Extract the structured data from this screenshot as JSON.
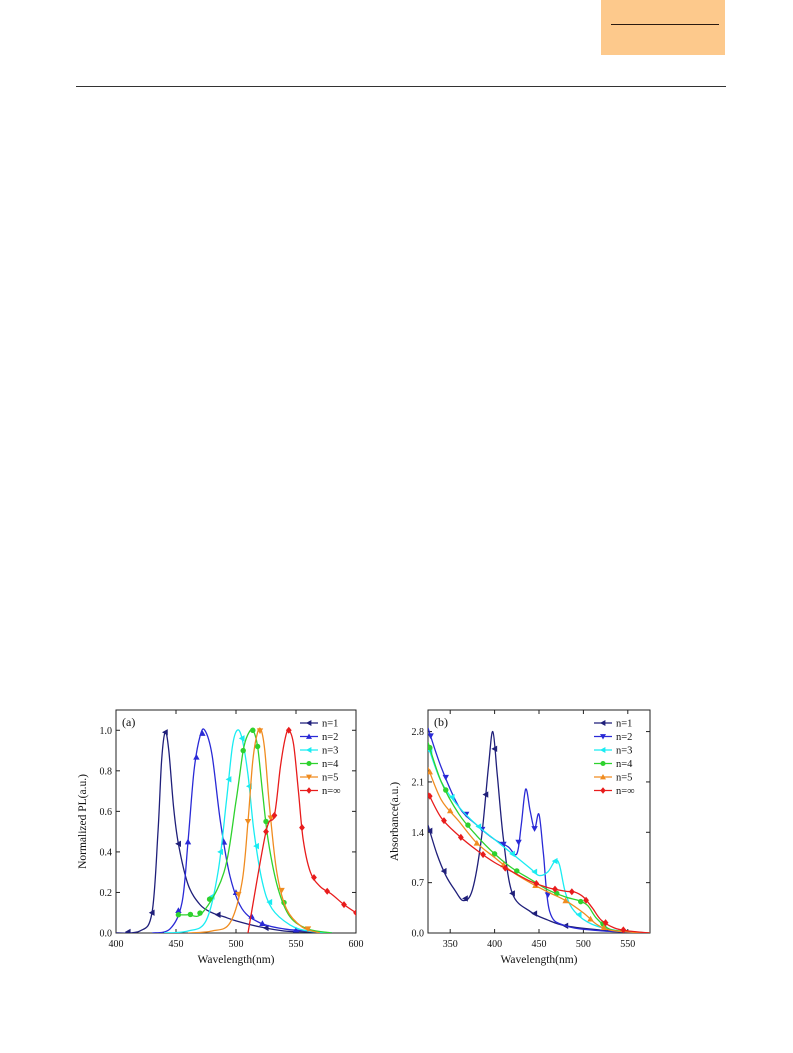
{
  "page": {
    "background": "#ffffff",
    "header_box_color": "#fdc98c"
  },
  "chart_data": [
    {
      "type": "line",
      "panel_label": "(a)",
      "title": "",
      "xlabel": "Wavelength(nm)",
      "ylabel": "Normalized PL(a.u.)",
      "xlim": [
        400,
        600
      ],
      "ylim": [
        0,
        1.1
      ],
      "xticks": [
        "400",
        "450",
        "500",
        "550",
        "600"
      ],
      "yticks": [
        "0.0",
        "0.2",
        "0.4",
        "0.6",
        "0.8",
        "1.0"
      ],
      "grid": false,
      "legend_position": "top-right",
      "series": [
        {
          "name": "n=1",
          "color": "#1f1f7a",
          "marker": "left-triangle",
          "x": [
            400,
            420,
            430,
            435,
            438,
            441,
            444,
            448,
            452,
            460,
            470,
            480,
            490,
            500,
            520,
            540,
            560,
            580
          ],
          "y": [
            0,
            0.01,
            0.1,
            0.5,
            0.85,
            0.99,
            0.9,
            0.62,
            0.44,
            0.24,
            0.14,
            0.1,
            0.08,
            0.06,
            0.03,
            0.01,
            0.005,
            0
          ],
          "markers_x": [
            410,
            430,
            441,
            452,
            485,
            525
          ]
        },
        {
          "name": "n=2",
          "color": "#2a2ad6",
          "marker": "up-triangle",
          "x": [
            430,
            445,
            455,
            460,
            465,
            470,
            474,
            480,
            487,
            495,
            505,
            520,
            540,
            560,
            580
          ],
          "y": [
            0,
            0.02,
            0.15,
            0.45,
            0.8,
            0.97,
            1.0,
            0.88,
            0.55,
            0.28,
            0.12,
            0.05,
            0.02,
            0.01,
            0
          ],
          "markers_x": [
            452,
            460,
            467,
            472,
            490,
            500,
            513,
            522,
            550
          ]
        },
        {
          "name": "n=3",
          "color": "#19ecf2",
          "marker": "left-triangle",
          "x": [
            440,
            460,
            475,
            485,
            492,
            497,
            501,
            505,
            510,
            515,
            522,
            530,
            545,
            560,
            580
          ],
          "y": [
            0,
            0.01,
            0.06,
            0.3,
            0.65,
            0.92,
            1.0,
            0.96,
            0.78,
            0.5,
            0.25,
            0.12,
            0.04,
            0.01,
            0
          ],
          "markers_x": [
            480,
            487,
            494,
            505,
            511,
            517,
            528
          ]
        },
        {
          "name": "n=4",
          "color": "#2ed22e",
          "marker": "circle",
          "x": [
            450,
            460,
            472,
            490,
            500,
            506,
            510,
            514,
            518,
            522,
            527,
            535,
            545,
            560,
            580
          ],
          "y": [
            0.09,
            0.09,
            0.1,
            0.3,
            0.65,
            0.9,
            0.98,
            1.0,
            0.92,
            0.7,
            0.45,
            0.22,
            0.08,
            0.02,
            0
          ],
          "markers_x": [
            452,
            462,
            470,
            478,
            506,
            514,
            518,
            525,
            540
          ]
        },
        {
          "name": "n=5",
          "color": "#f08c20",
          "marker": "down-triangle",
          "x": [
            460,
            480,
            495,
            505,
            510,
            514,
            518,
            521,
            524,
            528,
            534,
            542,
            555,
            570
          ],
          "y": [
            0,
            0.01,
            0.05,
            0.25,
            0.55,
            0.85,
            0.99,
            1.0,
            0.9,
            0.62,
            0.3,
            0.12,
            0.03,
            0
          ],
          "markers_x": [
            502,
            510,
            520,
            529,
            538,
            560
          ]
        },
        {
          "name": "n=∞",
          "color": "#e81c1c",
          "marker": "diamond",
          "x": [
            510,
            525,
            532,
            537,
            541,
            544,
            548,
            552,
            556,
            562,
            570,
            580,
            590,
            600
          ],
          "y": [
            0,
            0.5,
            0.58,
            0.82,
            0.96,
            1.0,
            0.93,
            0.7,
            0.46,
            0.3,
            0.23,
            0.19,
            0.14,
            0.1
          ],
          "markers_x": [
            525,
            532,
            544,
            555,
            565,
            576,
            590,
            600
          ]
        }
      ]
    },
    {
      "type": "line",
      "panel_label": "(b)",
      "title": "",
      "xlabel": "Wavelength(nm)",
      "ylabel": "Absorbance(a.u.)",
      "xlim": [
        325,
        575
      ],
      "ylim": [
        0,
        3.1
      ],
      "xticks": [
        "350",
        "400",
        "450",
        "500",
        "550"
      ],
      "yticks": [
        "0.0",
        "0.7",
        "1.4",
        "2.1",
        "2.8"
      ],
      "grid": false,
      "legend_position": "top-right",
      "series": [
        {
          "name": "n=1",
          "color": "#1f1f7a",
          "marker": "left-triangle",
          "x": [
            325,
            335,
            345,
            355,
            365,
            375,
            385,
            393,
            398,
            403,
            410,
            420,
            440,
            460,
            480,
            520,
            575
          ],
          "y": [
            1.5,
            1.1,
            0.8,
            0.6,
            0.45,
            0.6,
            1.3,
            2.3,
            2.8,
            2.2,
            1.3,
            0.55,
            0.3,
            0.18,
            0.1,
            0.04,
            0
          ],
          "markers_x": [
            327,
            343,
            367,
            390,
            400,
            420,
            445,
            480
          ]
        },
        {
          "name": "n=2",
          "color": "#2a2ad6",
          "marker": "down-triangle",
          "x": [
            325,
            340,
            360,
            380,
            400,
            415,
            425,
            430,
            435,
            440,
            445,
            450,
            455,
            462,
            480,
            520,
            575
          ],
          "y": [
            2.85,
            2.3,
            1.75,
            1.5,
            1.3,
            1.2,
            1.1,
            1.5,
            2.0,
            1.7,
            1.45,
            1.65,
            1.1,
            0.3,
            0.1,
            0.03,
            0
          ],
          "markers_x": [
            328,
            345,
            368,
            386,
            410,
            427,
            445,
            460
          ]
        },
        {
          "name": "n=3",
          "color": "#19ecf2",
          "marker": "left-triangle",
          "x": [
            325,
            340,
            360,
            380,
            400,
            420,
            440,
            450,
            460,
            468,
            473,
            480,
            490,
            510,
            540,
            575
          ],
          "y": [
            2.6,
            2.1,
            1.75,
            1.5,
            1.3,
            1.1,
            0.9,
            0.8,
            0.85,
            1.0,
            0.95,
            0.55,
            0.3,
            0.12,
            0.03,
            0
          ],
          "markers_x": [
            327,
            352,
            382,
            420,
            445,
            468,
            495,
            523
          ]
        },
        {
          "name": "n=4",
          "color": "#2ed22e",
          "marker": "circle",
          "x": [
            325,
            340,
            360,
            380,
            400,
            420,
            440,
            460,
            480,
            495,
            505,
            515,
            530,
            550,
            575
          ],
          "y": [
            2.65,
            2.1,
            1.65,
            1.35,
            1.1,
            0.9,
            0.75,
            0.6,
            0.5,
            0.45,
            0.38,
            0.2,
            0.05,
            0.02,
            0
          ],
          "markers_x": [
            327,
            345,
            370,
            400,
            425,
            470,
            497,
            522
          ]
        },
        {
          "name": "n=5",
          "color": "#f08c20",
          "marker": "up-triangle",
          "x": [
            325,
            340,
            360,
            380,
            400,
            420,
            440,
            460,
            480,
            500,
            515,
            530,
            555,
            575
          ],
          "y": [
            2.3,
            1.85,
            1.55,
            1.25,
            1.05,
            0.85,
            0.7,
            0.57,
            0.45,
            0.28,
            0.12,
            0.04,
            0.01,
            0
          ],
          "markers_x": [
            327,
            350,
            380,
            410,
            446,
            480,
            508,
            523
          ]
        },
        {
          "name": "n=∞",
          "color": "#e81c1c",
          "marker": "diamond",
          "x": [
            325,
            340,
            360,
            380,
            400,
            420,
            440,
            460,
            480,
            490,
            500,
            510,
            520,
            535,
            550,
            575
          ],
          "y": [
            1.95,
            1.6,
            1.35,
            1.15,
            0.98,
            0.85,
            0.72,
            0.63,
            0.58,
            0.57,
            0.5,
            0.35,
            0.18,
            0.07,
            0.03,
            0
          ],
          "markers_x": [
            327,
            343,
            362,
            387,
            412,
            447,
            468,
            487,
            503,
            525,
            545
          ]
        }
      ]
    }
  ]
}
